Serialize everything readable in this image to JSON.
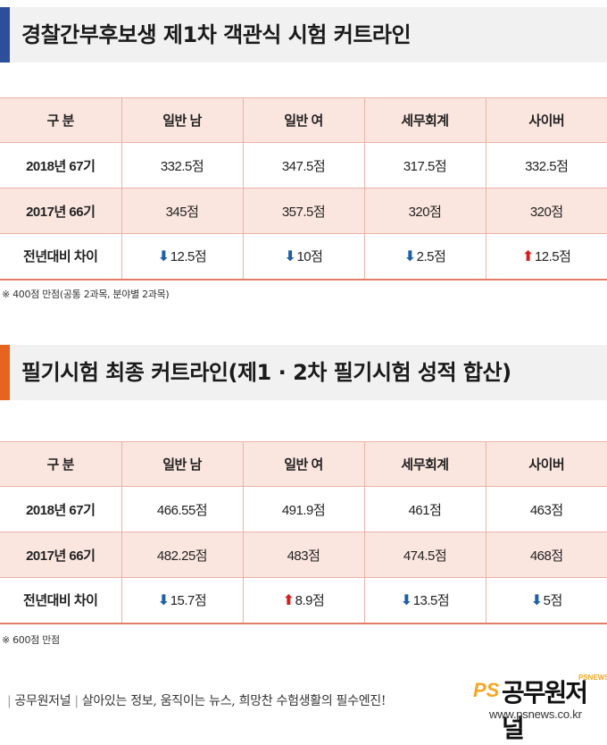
{
  "section1": {
    "title": "경찰간부후보생 제1차 객관식 시험 커트라인",
    "accent_color": "#2d4e9a",
    "headers": [
      "구  분",
      "일반 남",
      "일반 여",
      "세무회계",
      "사이버"
    ],
    "rows": [
      {
        "label": "2018년 67기",
        "cells": [
          "332.5점",
          "347.5점",
          "317.5점",
          "332.5점"
        ]
      },
      {
        "label": "2017년 66기",
        "cells": [
          "345점",
          "357.5점",
          "320점",
          "320점"
        ]
      },
      {
        "label": "전년대비 차이",
        "cells": [
          {
            "dir": "down",
            "value": "12.5점"
          },
          {
            "dir": "down",
            "value": "10점"
          },
          {
            "dir": "down",
            "value": "2.5점"
          },
          {
            "dir": "up",
            "value": "12.5점"
          }
        ]
      }
    ],
    "note": "※ 400점 만점(공통 2과목, 분야별 2과목)"
  },
  "section2": {
    "title": "필기시험 최종 커트라인(제1 · 2차 필기시험 성적 합산)",
    "accent_color": "#e8641e",
    "headers": [
      "구  분",
      "일반 남",
      "일반 여",
      "세무회계",
      "사이버"
    ],
    "rows": [
      {
        "label": "2018년 67기",
        "cells": [
          "466.55점",
          "491.9점",
          "461점",
          "463점"
        ]
      },
      {
        "label": "2017년 66기",
        "cells": [
          "482.25점",
          "483점",
          "474.5점",
          "468점"
        ]
      },
      {
        "label": "전년대비 차이",
        "cells": [
          {
            "dir": "down",
            "value": "15.7점"
          },
          {
            "dir": "up",
            "value": "8.9점"
          },
          {
            "dir": "down",
            "value": "13.5점"
          },
          {
            "dir": "down",
            "value": "5점"
          }
        ]
      }
    ],
    "note": "※ 600점 만점"
  },
  "icons": {
    "down": "arrow-down-icon",
    "up": "arrow-up-icon",
    "down_glyph": "⬇",
    "up_glyph": "⬆"
  },
  "footer": {
    "brand": "공무원저널",
    "slogan": "살아있는 정보, 움직이는 뉴스, 희망찬 수험생활의 필수엔진!",
    "logo_ps": "PS",
    "logo_brand": "공무원저널",
    "logo_small": "PSNEWS",
    "url": "www.psnews.co.kr"
  }
}
